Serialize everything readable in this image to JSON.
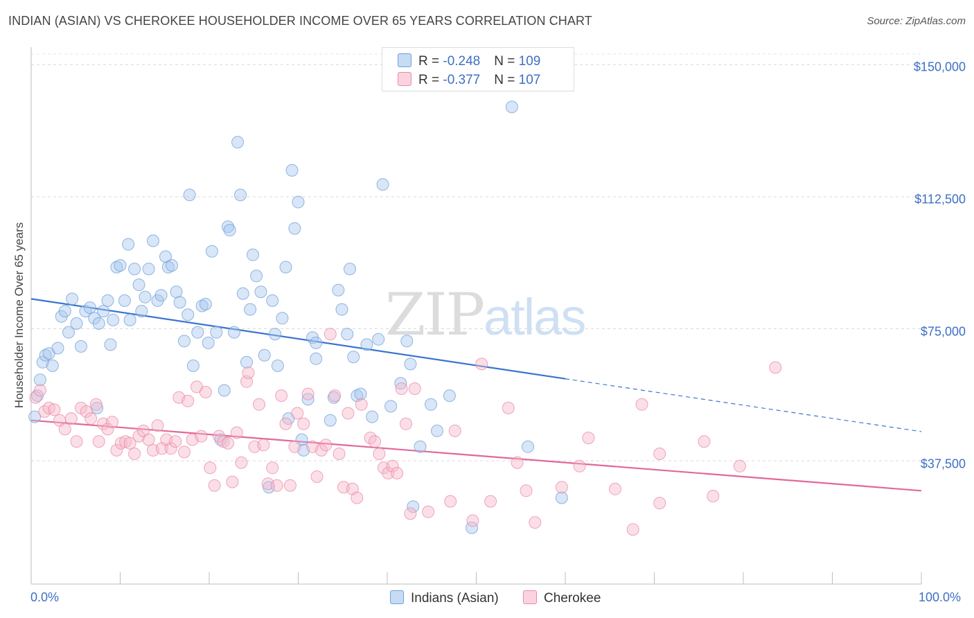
{
  "title": "INDIAN (ASIAN) VS CHEROKEE HOUSEHOLDER INCOME OVER 65 YEARS CORRELATION CHART",
  "source": "Source: ZipAtlas.com",
  "watermark": {
    "zip": "ZIP",
    "atlas": "atlas"
  },
  "legend": {
    "rows": [
      {
        "r_label": "R = ",
        "r_value": "-0.248",
        "n_label": "N = ",
        "n_value": "109",
        "color": "#a9c8ee"
      },
      {
        "r_label": "R = ",
        "r_value": "-0.377",
        "n_label": "N = ",
        "n_value": "107",
        "color": "#f6b7ca"
      }
    ]
  },
  "bottom_legend": [
    {
      "label": "Indians (Asian)",
      "color": "#a9c8ee"
    },
    {
      "label": "Cherokee",
      "color": "#f6b7ca"
    }
  ],
  "chart_data": {
    "type": "scatter",
    "title": "INDIAN (ASIAN) VS CHEROKEE HOUSEHOLDER INCOME OVER 65 YEARS CORRELATION CHART",
    "xlabel": "",
    "ylabel": "Householder Income Over 65 years",
    "xlim": [
      0,
      100
    ],
    "ylim": [
      2500,
      155000
    ],
    "x_tick_labels": [
      "0.0%",
      "100.0%"
    ],
    "y_ticks": [
      37500,
      75000,
      112500,
      150000
    ],
    "y_tick_labels": [
      "$37,500",
      "$75,000",
      "$112,500",
      "$150,000"
    ],
    "grid": "horizontal dashed",
    "legend_position": "top-center",
    "series": [
      {
        "name": "Indians (Asian)",
        "color": "#a9c8ee",
        "edge_color": "#6f9fd8",
        "trend": {
          "x": [
            0,
            60
          ],
          "y": [
            83500,
            60800
          ],
          "dashed_to": [
            100,
            45800
          ],
          "color": "#3a74d0"
        },
        "points": [
          [
            0.4,
            50000
          ],
          [
            0.7,
            56000
          ],
          [
            1,
            60500
          ],
          [
            1.3,
            65500
          ],
          [
            1.6,
            67500
          ],
          [
            2,
            68000
          ],
          [
            2.4,
            64500
          ],
          [
            3,
            69500
          ],
          [
            3.4,
            78500
          ],
          [
            3.8,
            80000
          ],
          [
            4.2,
            74000
          ],
          [
            4.6,
            83500
          ],
          [
            5.1,
            76500
          ],
          [
            5.6,
            70000
          ],
          [
            6.1,
            80000
          ],
          [
            6.6,
            81000
          ],
          [
            7.1,
            78000
          ],
          [
            7.6,
            76500
          ],
          [
            7.4,
            52500
          ],
          [
            8.1,
            80000
          ],
          [
            8.6,
            83000
          ],
          [
            8.9,
            70500
          ],
          [
            9.2,
            77500
          ],
          [
            9.6,
            92500
          ],
          [
            10,
            93000
          ],
          [
            10.5,
            83000
          ],
          [
            10.9,
            99000
          ],
          [
            11.1,
            77500
          ],
          [
            11.6,
            92000
          ],
          [
            12.1,
            87500
          ],
          [
            12.4,
            80000
          ],
          [
            12.8,
            84000
          ],
          [
            13.2,
            92000
          ],
          [
            13.7,
            100000
          ],
          [
            14.2,
            83000
          ],
          [
            14.6,
            84500
          ],
          [
            15.1,
            95500
          ],
          [
            15.4,
            92500
          ],
          [
            15.8,
            93000
          ],
          [
            16.3,
            85500
          ],
          [
            16.7,
            82500
          ],
          [
            17.2,
            71500
          ],
          [
            17.6,
            79000
          ],
          [
            17.8,
            113000
          ],
          [
            18.2,
            64500
          ],
          [
            18.7,
            74000
          ],
          [
            19.2,
            81500
          ],
          [
            19.6,
            82000
          ],
          [
            19.9,
            71000
          ],
          [
            20.3,
            97000
          ],
          [
            20.8,
            74000
          ],
          [
            21.3,
            43500
          ],
          [
            21.7,
            57500
          ],
          [
            22.1,
            104000
          ],
          [
            22.3,
            103000
          ],
          [
            22.8,
            74000
          ],
          [
            23.2,
            128000
          ],
          [
            23.5,
            113000
          ],
          [
            23.8,
            85000
          ],
          [
            24.2,
            65500
          ],
          [
            24.6,
            80500
          ],
          [
            24.9,
            96000
          ],
          [
            25.3,
            90000
          ],
          [
            25.8,
            85500
          ],
          [
            26.2,
            67500
          ],
          [
            26.7,
            30000
          ],
          [
            27.1,
            83000
          ],
          [
            27.4,
            73500
          ],
          [
            27.7,
            64500
          ],
          [
            28.2,
            78000
          ],
          [
            28.6,
            92500
          ],
          [
            28.9,
            49500
          ],
          [
            29.3,
            120000
          ],
          [
            29.6,
            103500
          ],
          [
            30,
            111000
          ],
          [
            30.4,
            43500
          ],
          [
            30.6,
            40500
          ],
          [
            31.1,
            55000
          ],
          [
            31.6,
            72500
          ],
          [
            32,
            66500
          ],
          [
            32,
            71000
          ],
          [
            33.6,
            49000
          ],
          [
            34,
            55500
          ],
          [
            34.5,
            86000
          ],
          [
            34.9,
            80500
          ],
          [
            35.5,
            73500
          ],
          [
            35.8,
            92000
          ],
          [
            36.2,
            67000
          ],
          [
            36.6,
            56000
          ],
          [
            37,
            56500
          ],
          [
            37.7,
            70500
          ],
          [
            38.3,
            50000
          ],
          [
            39,
            72000
          ],
          [
            39.5,
            116000
          ],
          [
            40.4,
            53000
          ],
          [
            41.5,
            59500
          ],
          [
            42.2,
            71500
          ],
          [
            42.6,
            65000
          ],
          [
            42.9,
            24500
          ],
          [
            43.7,
            41500
          ],
          [
            44.9,
            53500
          ],
          [
            45.6,
            46000
          ],
          [
            47,
            56000
          ],
          [
            49.5,
            18500
          ],
          [
            54,
            138000
          ],
          [
            55.8,
            41500
          ],
          [
            59.6,
            27000
          ]
        ]
      },
      {
        "name": "Cherokee",
        "color": "#f6b7ca",
        "edge_color": "#ea88a8",
        "trend": {
          "x": [
            0,
            100
          ],
          "y": [
            49000,
            29000
          ],
          "color": "#e2679a"
        },
        "points": [
          [
            0.5,
            55500
          ],
          [
            1,
            57500
          ],
          [
            1.5,
            51500
          ],
          [
            2,
            52500
          ],
          [
            2.6,
            52000
          ],
          [
            3.2,
            49000
          ],
          [
            3.8,
            46500
          ],
          [
            4.5,
            49500
          ],
          [
            5.1,
            43000
          ],
          [
            5.6,
            52500
          ],
          [
            6.2,
            51500
          ],
          [
            6.7,
            49500
          ],
          [
            7.3,
            53500
          ],
          [
            7.6,
            43000
          ],
          [
            8.1,
            48000
          ],
          [
            8.6,
            46500
          ],
          [
            9.1,
            48500
          ],
          [
            9.6,
            40500
          ],
          [
            10.1,
            42500
          ],
          [
            10.6,
            43000
          ],
          [
            11.1,
            42500
          ],
          [
            11.6,
            39500
          ],
          [
            12.1,
            44500
          ],
          [
            12.6,
            46000
          ],
          [
            13.2,
            43500
          ],
          [
            13.7,
            40500
          ],
          [
            14.2,
            47500
          ],
          [
            14.7,
            41000
          ],
          [
            15.2,
            43500
          ],
          [
            15.7,
            41000
          ],
          [
            16.2,
            43000
          ],
          [
            16.6,
            55500
          ],
          [
            17.2,
            40000
          ],
          [
            17.6,
            54500
          ],
          [
            18.1,
            43500
          ],
          [
            18.6,
            58500
          ],
          [
            19.1,
            44500
          ],
          [
            19.6,
            57000
          ],
          [
            20.1,
            35500
          ],
          [
            20.6,
            30500
          ],
          [
            21.1,
            44500
          ],
          [
            21.6,
            43000
          ],
          [
            22.1,
            42500
          ],
          [
            22.6,
            31500
          ],
          [
            23.1,
            45500
          ],
          [
            23.6,
            37000
          ],
          [
            24.2,
            60000
          ],
          [
            24.4,
            62500
          ],
          [
            25.1,
            41500
          ],
          [
            25.6,
            53500
          ],
          [
            26.1,
            42000
          ],
          [
            26.6,
            31000
          ],
          [
            27.1,
            35500
          ],
          [
            27.6,
            30500
          ],
          [
            28.1,
            56000
          ],
          [
            28.6,
            48000
          ],
          [
            29.1,
            30500
          ],
          [
            29.6,
            41500
          ],
          [
            29.9,
            51000
          ],
          [
            30.6,
            48000
          ],
          [
            31.1,
            56500
          ],
          [
            31.6,
            41500
          ],
          [
            32.1,
            33000
          ],
          [
            32.6,
            40500
          ],
          [
            33.1,
            42000
          ],
          [
            33.6,
            73500
          ],
          [
            34.1,
            56000
          ],
          [
            34.6,
            39500
          ],
          [
            35.1,
            30000
          ],
          [
            35.6,
            51000
          ],
          [
            36.1,
            29500
          ],
          [
            36.6,
            27000
          ],
          [
            37.1,
            53500
          ],
          [
            38.1,
            44000
          ],
          [
            38.6,
            43000
          ],
          [
            39.1,
            39500
          ],
          [
            39.6,
            35500
          ],
          [
            40.1,
            34000
          ],
          [
            40.6,
            36000
          ],
          [
            41.1,
            34000
          ],
          [
            41.6,
            58000
          ],
          [
            42.1,
            48000
          ],
          [
            42.6,
            22500
          ],
          [
            43.1,
            58000
          ],
          [
            44.6,
            23000
          ],
          [
            47.1,
            26000
          ],
          [
            47.6,
            46000
          ],
          [
            49.6,
            20500
          ],
          [
            50.6,
            65000
          ],
          [
            51.6,
            26000
          ],
          [
            53.6,
            52500
          ],
          [
            54.6,
            37000
          ],
          [
            55.6,
            29000
          ],
          [
            56.6,
            20000
          ],
          [
            59.6,
            30000
          ],
          [
            61.6,
            36000
          ],
          [
            62.6,
            44000
          ],
          [
            65.6,
            29500
          ],
          [
            67.6,
            18000
          ],
          [
            68.6,
            53500
          ],
          [
            70.6,
            39500
          ],
          [
            70.6,
            25500
          ],
          [
            75.6,
            43000
          ],
          [
            76.6,
            27500
          ],
          [
            79.6,
            36000
          ],
          [
            83.6,
            64000
          ]
        ]
      }
    ]
  }
}
